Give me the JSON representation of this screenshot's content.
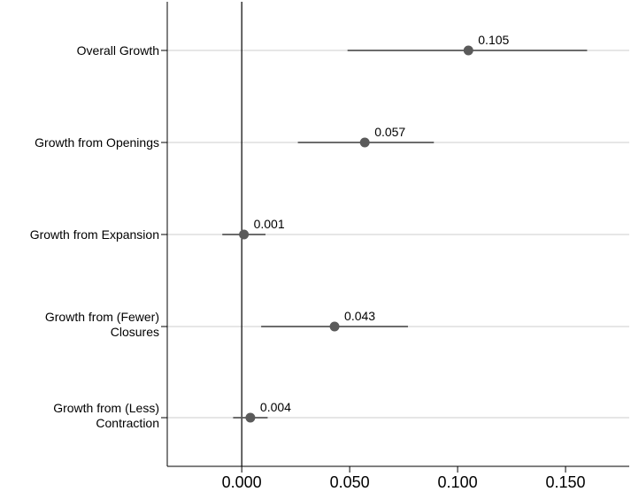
{
  "chart_data": {
    "type": "scatter",
    "subtype": "coefficient-plot",
    "title": "",
    "xlabel": "",
    "ylabel": "",
    "xlim": [
      -0.0345,
      0.1795
    ],
    "grid": "horizontal",
    "reference_line_x": 0,
    "x_ticks": [
      0,
      0.05,
      0.1,
      0.15
    ],
    "x_tick_labels": [
      "0.000",
      "0.050",
      "0.100",
      "0.150"
    ],
    "categories": [
      {
        "label_lines": [
          "Overall Growth"
        ]
      },
      {
        "label_lines": [
          "Growth from Openings"
        ]
      },
      {
        "label_lines": [
          "Growth from Expansion"
        ]
      },
      {
        "label_lines": [
          "Growth from (Fewer)",
          "Closures"
        ]
      },
      {
        "label_lines": [
          "Growth from (Less)",
          "Contraction"
        ]
      }
    ],
    "points": [
      {
        "value": 0.105,
        "ci_low": 0.049,
        "ci_high": 0.16,
        "label": "0.105"
      },
      {
        "value": 0.057,
        "ci_low": 0.026,
        "ci_high": 0.089,
        "label": "0.057"
      },
      {
        "value": 0.001,
        "ci_low": -0.009,
        "ci_high": 0.011,
        "label": "0.001"
      },
      {
        "value": 0.043,
        "ci_low": 0.009,
        "ci_high": 0.077,
        "label": "0.043"
      },
      {
        "value": 0.004,
        "ci_low": -0.004,
        "ci_high": 0.012,
        "label": "0.004"
      }
    ],
    "colors": {
      "point": "#5a5a5a",
      "ci_line": "#5a5a5a",
      "grid": "#dddddd",
      "axis": "#000000"
    }
  }
}
